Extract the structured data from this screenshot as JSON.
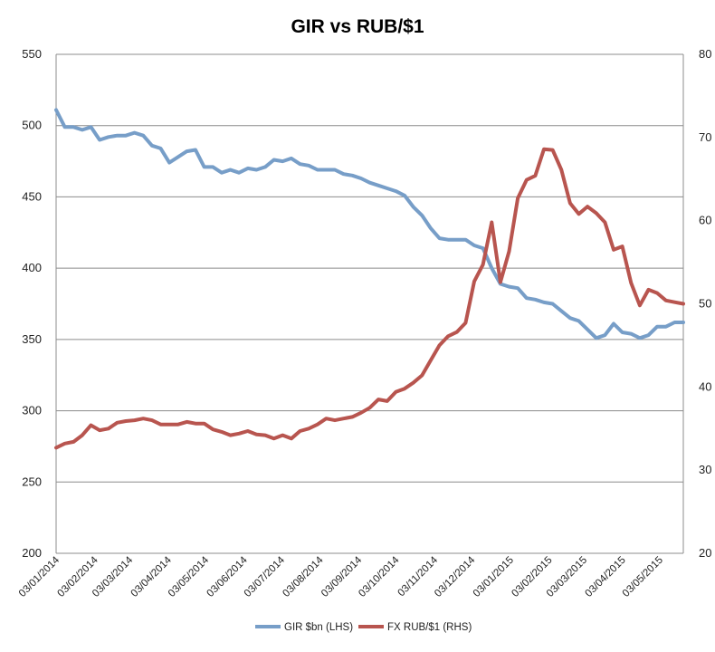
{
  "chart_data": {
    "type": "line",
    "title": "GIR vs RUB/$1",
    "x": [
      "03/01/2014",
      "10/01/2014",
      "17/01/2014",
      "24/01/2014",
      "31/01/2014",
      "07/02/2014",
      "14/02/2014",
      "21/02/2014",
      "28/02/2014",
      "07/03/2014",
      "14/03/2014",
      "21/03/2014",
      "28/03/2014",
      "04/04/2014",
      "11/04/2014",
      "18/04/2014",
      "25/04/2014",
      "02/05/2014",
      "09/05/2014",
      "16/05/2014",
      "23/05/2014",
      "30/05/2014",
      "06/06/2014",
      "13/06/2014",
      "20/06/2014",
      "27/06/2014",
      "04/07/2014",
      "11/07/2014",
      "18/07/2014",
      "25/07/2014",
      "01/08/2014",
      "08/08/2014",
      "15/08/2014",
      "22/08/2014",
      "29/08/2014",
      "05/09/2014",
      "12/09/2014",
      "19/09/2014",
      "26/09/2014",
      "03/10/2014",
      "10/10/2014",
      "17/10/2014",
      "24/10/2014",
      "31/10/2014",
      "07/11/2014",
      "14/11/2014",
      "21/11/2014",
      "28/11/2014",
      "05/12/2014",
      "12/12/2014",
      "19/12/2014",
      "26/12/2014",
      "02/01/2015",
      "09/01/2015",
      "16/01/2015",
      "23/01/2015",
      "30/01/2015",
      "06/02/2015",
      "13/02/2015",
      "20/02/2015",
      "27/02/2015",
      "06/03/2015",
      "13/03/2015",
      "20/03/2015",
      "27/03/2015",
      "03/04/2015",
      "10/04/2015",
      "17/04/2015",
      "24/04/2015",
      "01/05/2015",
      "08/05/2015",
      "15/05/2015",
      "22/05/2015"
    ],
    "x_tick_labels": [
      "03/01/2014",
      "03/02/2014",
      "03/03/2014",
      "03/04/2014",
      "03/05/2014",
      "03/06/2014",
      "03/07/2014",
      "03/08/2014",
      "03/09/2014",
      "03/10/2014",
      "03/11/2014",
      "03/12/2014",
      "03/01/2015",
      "03/02/2015",
      "03/03/2015",
      "03/04/2015",
      "03/05/2015"
    ],
    "y_left": {
      "lim": [
        200,
        550
      ],
      "ticks": [
        "200",
        "250",
        "300",
        "350",
        "400",
        "450",
        "500",
        "550"
      ]
    },
    "y_right": {
      "lim": [
        20,
        80
      ],
      "ticks": [
        "20",
        "30",
        "40",
        "50",
        "60",
        "70",
        "80"
      ]
    },
    "grid": true,
    "legend_position": "bottom",
    "series": [
      {
        "name": "GIR $bn (LHS)",
        "axis": "left",
        "color": "#779ec8",
        "values": [
          511,
          499,
          499,
          497,
          499,
          490,
          492,
          493,
          493,
          495,
          493,
          486,
          484,
          474,
          478,
          482,
          483,
          471,
          471,
          467,
          469,
          467,
          470,
          469,
          471,
          476,
          475,
          477,
          473,
          472,
          469,
          469,
          469,
          466,
          465,
          463,
          460,
          458,
          456,
          454,
          451,
          443,
          437,
          428,
          421,
          420,
          420,
          420,
          416,
          414,
          400,
          389,
          387,
          386,
          379,
          378,
          376,
          375,
          370,
          365,
          363,
          357,
          351,
          353,
          361,
          355,
          354,
          351,
          353,
          359,
          359,
          362,
          362
        ]
      },
      {
        "name": "FX RUB/$1 (RHS)",
        "axis": "right",
        "color": "#b8554f",
        "values": [
          32.7,
          33.2,
          33.4,
          34.2,
          35.4,
          34.8,
          35.0,
          35.7,
          35.9,
          36.0,
          36.2,
          36.0,
          35.5,
          35.5,
          35.5,
          35.8,
          35.6,
          35.6,
          34.9,
          34.6,
          34.2,
          34.4,
          34.7,
          34.3,
          34.2,
          33.8,
          34.2,
          33.8,
          34.7,
          35.0,
          35.5,
          36.2,
          36.0,
          36.2,
          36.4,
          36.9,
          37.5,
          38.5,
          38.3,
          39.4,
          39.8,
          40.5,
          41.4,
          43.2,
          45.0,
          46.1,
          46.6,
          47.7,
          52.7,
          54.7,
          59.8,
          52.6,
          56.3,
          62.7,
          64.9,
          65.4,
          68.6,
          68.5,
          66.1,
          62.1,
          60.8,
          61.7,
          60.9,
          59.8,
          56.5,
          56.9,
          52.5,
          49.8,
          51.7,
          51.3,
          50.4,
          50.2,
          50.0
        ]
      }
    ]
  }
}
